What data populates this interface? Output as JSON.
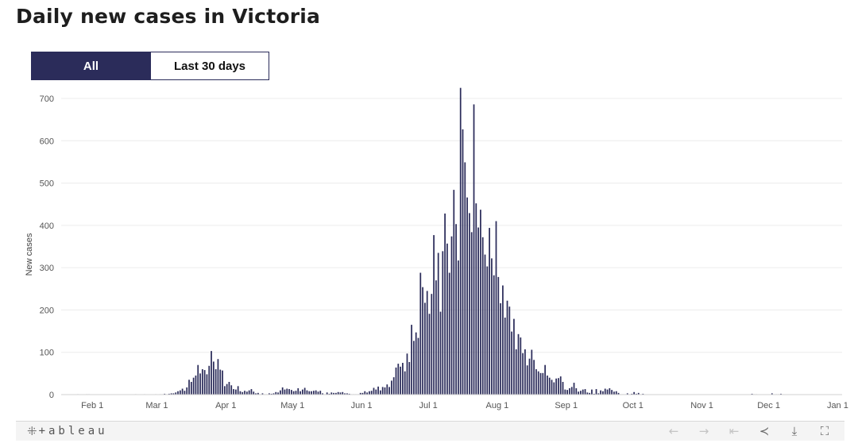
{
  "page": {
    "title": "Daily new cases in Victoria"
  },
  "controls": {
    "toggles": [
      {
        "label": "All",
        "active": true
      },
      {
        "label": "Last 30 days",
        "active": false
      }
    ]
  },
  "footer": {
    "brand_mark": "⁜",
    "brand": "+ableau"
  },
  "toolbar": [
    {
      "name": "undo-icon",
      "glyph": "←",
      "enabled": false
    },
    {
      "name": "redo-icon",
      "glyph": "→",
      "enabled": false
    },
    {
      "name": "revert-icon",
      "glyph": "⇤",
      "enabled": false
    },
    {
      "name": "share-icon",
      "glyph": "≺",
      "enabled": true
    },
    {
      "name": "download-icon",
      "glyph": "⤓",
      "enabled": true
    },
    {
      "name": "fullscreen-icon",
      "glyph": "⛶",
      "enabled": true
    }
  ],
  "colors": {
    "bar": "#2b2c5a",
    "grid": "#ececec",
    "accent": "#2b2c5a"
  },
  "chart_data": {
    "type": "bar",
    "title": "Daily new cases in Victoria",
    "xlabel": "",
    "ylabel": "New cases",
    "ylim": [
      0,
      700
    ],
    "yticks": [
      0,
      100,
      200,
      300,
      400,
      500,
      600,
      700
    ],
    "xlim": [
      "2020-01-18",
      "2021-01-03"
    ],
    "xticks": [
      {
        "label": "Feb 1",
        "date": "2020-02-01"
      },
      {
        "label": "Mar 1",
        "date": "2020-03-01"
      },
      {
        "label": "Apr 1",
        "date": "2020-04-01"
      },
      {
        "label": "May 1",
        "date": "2020-05-01"
      },
      {
        "label": "Jun 1",
        "date": "2020-06-01"
      },
      {
        "label": "Jul 1",
        "date": "2020-07-01"
      },
      {
        "label": "Aug 1",
        "date": "2020-08-01"
      },
      {
        "label": "Sep 1",
        "date": "2020-09-01"
      },
      {
        "label": "Oct 1",
        "date": "2020-10-01"
      },
      {
        "label": "Nov 1",
        "date": "2020-11-01"
      },
      {
        "label": "Dec 1",
        "date": "2020-12-01"
      },
      {
        "label": "Jan 1",
        "date": "2021-01-01"
      }
    ],
    "grid": true,
    "series": [
      {
        "start_date": "2020-01-25",
        "values": [
          1,
          0,
          0,
          0,
          1,
          1,
          0,
          0,
          0,
          0,
          0,
          0,
          0,
          0,
          0,
          0,
          0,
          0,
          0,
          0,
          0,
          0,
          0,
          0,
          0,
          0,
          1,
          0,
          0,
          0,
          1,
          0,
          0,
          0,
          0,
          1,
          0,
          1,
          1,
          2,
          1,
          2,
          3,
          3,
          5,
          8,
          10,
          14,
          9,
          17,
          35,
          30,
          40,
          45,
          70,
          50,
          60,
          58,
          48,
          68,
          103,
          78,
          60,
          84,
          59,
          57,
          20,
          25,
          30,
          22,
          13,
          12,
          20,
          8,
          6,
          9,
          7,
          10,
          13,
          7,
          3,
          4,
          1,
          3,
          1,
          1,
          3,
          2,
          3,
          6,
          5,
          10,
          17,
          12,
          14,
          13,
          11,
          8,
          9,
          15,
          8,
          12,
          16,
          10,
          8,
          8,
          9,
          10,
          7,
          9,
          3,
          1,
          5,
          2,
          5,
          4,
          4,
          6,
          5,
          6,
          3,
          3,
          2,
          1,
          1,
          1,
          1,
          4,
          4,
          8,
          5,
          8,
          9,
          16,
          12,
          19,
          10,
          18,
          17,
          24,
          18,
          33,
          41,
          64,
          73,
          66,
          75,
          55,
          97,
          77,
          165,
          127,
          147,
          134,
          288,
          254,
          217,
          245,
          191,
          238,
          377,
          270,
          335,
          196,
          339,
          428,
          357,
          288,
          374,
          484,
          403,
          317,
          725,
          627,
          549,
          466,
          429,
          384,
          686,
          452,
          395,
          437,
          372,
          331,
          303,
          394,
          322,
          282,
          410,
          278,
          216,
          258,
          182,
          222,
          208,
          149,
          179,
          107,
          143,
          135,
          98,
          107,
          69,
          85,
          106,
          82,
          60,
          55,
          51,
          51,
          70,
          45,
          40,
          35,
          29,
          38,
          39,
          43,
          30,
          12,
          11,
          15,
          18,
          28,
          15,
          7,
          9,
          12,
          13,
          5,
          4,
          12,
          2,
          13,
          3,
          10,
          8,
          14,
          12,
          15,
          11,
          7,
          8,
          4,
          1,
          1,
          1,
          3,
          1,
          2,
          6,
          2,
          4,
          1,
          2,
          0,
          0,
          0,
          0,
          0,
          0,
          0,
          0,
          0,
          0,
          0,
          0,
          0,
          0,
          0,
          0,
          0,
          0,
          0,
          0,
          0,
          0,
          0,
          0,
          0,
          0,
          0,
          0,
          0,
          0,
          0,
          0,
          0,
          0,
          0,
          0,
          0,
          0,
          0,
          0,
          0,
          0,
          0,
          0,
          0,
          0,
          0,
          0,
          2,
          1,
          1,
          0,
          0,
          0,
          0,
          0,
          0,
          3,
          0,
          1,
          1,
          2,
          0,
          0
        ]
      }
    ]
  }
}
